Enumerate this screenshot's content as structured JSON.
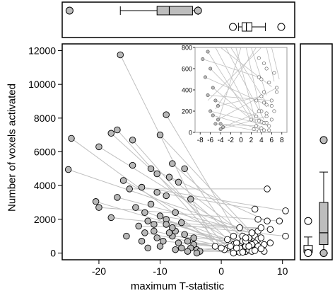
{
  "chart_data": [
    {
      "type": "scatter",
      "name": "main",
      "xlabel": "maximum T-statistic",
      "ylabel": "Number of voxels activated",
      "xlim": [
        -26,
        12
      ],
      "ylim": [
        -400,
        12400
      ],
      "x_ticks": [
        -20,
        -10,
        0,
        10
      ],
      "y_ticks": [
        0,
        2000,
        4000,
        6000,
        8000,
        10000,
        12000
      ],
      "colors": {
        "negative": "#b8b8b8",
        "positive": "#ffffff",
        "line": "#bfbfbf",
        "box": "#bdbdbd"
      },
      "pairs": [
        {
          "neg": [
            -16.5,
            11750
          ],
          "pos": [
            -1.0,
            400
          ]
        },
        {
          "neg": [
            -9,
            8200
          ],
          "pos": [
            3.5,
            600
          ]
        },
        {
          "neg": [
            -14.5,
            6700
          ],
          "pos": [
            1.0,
            300
          ]
        },
        {
          "neg": [
            -17,
            7300
          ],
          "pos": [
            0.5,
            200
          ]
        },
        {
          "neg": [
            -18,
            7100
          ],
          "pos": [
            2.0,
            500
          ]
        },
        {
          "neg": [
            -24.5,
            6800
          ],
          "pos": [
            0.0,
            300
          ]
        },
        {
          "neg": [
            -20,
            6300
          ],
          "pos": [
            4.5,
            800
          ]
        },
        {
          "neg": [
            -10,
            7000
          ],
          "pos": [
            5.5,
            1000
          ]
        },
        {
          "neg": [
            -11.5,
            5000
          ],
          "pos": [
            7.5,
            1900
          ]
        },
        {
          "neg": [
            -25,
            4950
          ],
          "pos": [
            3.0,
            1500
          ]
        },
        {
          "neg": [
            -8,
            5300
          ],
          "pos": [
            6.0,
            800
          ]
        },
        {
          "neg": [
            -6,
            5000
          ],
          "pos": [
            3.0,
            400
          ]
        },
        {
          "neg": [
            -8.5,
            4500
          ],
          "pos": [
            4.5,
            900
          ]
        },
        {
          "neg": [
            -16,
            4300
          ],
          "pos": [
            2.5,
            600
          ]
        },
        {
          "neg": [
            -15,
            3800
          ],
          "pos": [
            7.5,
            3800
          ]
        },
        {
          "neg": [
            -13,
            3900
          ],
          "pos": [
            10.5,
            2500
          ]
        },
        {
          "neg": [
            -10.5,
            3600
          ],
          "pos": [
            5.5,
            2600
          ]
        },
        {
          "neg": [
            -17,
            3300
          ],
          "pos": [
            5.0,
            1200
          ]
        },
        {
          "neg": [
            -20.5,
            3050
          ],
          "pos": [
            5.0,
            300
          ]
        },
        {
          "neg": [
            -5,
            3200
          ],
          "pos": [
            2.0,
            1000
          ]
        },
        {
          "neg": [
            -20,
            2700
          ],
          "pos": [
            9.5,
            1900
          ]
        },
        {
          "neg": [
            -14,
            2700
          ],
          "pos": [
            3.0,
            200
          ]
        },
        {
          "neg": [
            -18,
            2100
          ],
          "pos": [
            10.5,
            1000
          ]
        },
        {
          "neg": [
            -10,
            2200
          ],
          "pos": [
            6.0,
            1300
          ]
        },
        {
          "neg": [
            -12,
            1900
          ],
          "pos": [
            8.0,
            1400
          ]
        },
        {
          "neg": [
            -9,
            2000
          ],
          "pos": [
            4.0,
            100
          ]
        },
        {
          "neg": [
            -13.5,
            1600
          ],
          "pos": [
            6.5,
            1500
          ]
        },
        {
          "neg": [
            -7.5,
            1300
          ],
          "pos": [
            3.5,
            700
          ]
        },
        {
          "neg": [
            -6.5,
            1800
          ],
          "pos": [
            1.0,
            800
          ]
        },
        {
          "neg": [
            -11,
            1300
          ],
          "pos": [
            4.0,
            100
          ]
        },
        {
          "neg": [
            -8,
            1000
          ],
          "pos": [
            5.5,
            600
          ]
        },
        {
          "neg": [
            -6,
            1100
          ],
          "pos": [
            6.0,
            400
          ]
        },
        {
          "neg": [
            -12.5,
            1200
          ],
          "pos": [
            2.0,
            200
          ]
        },
        {
          "neg": [
            -9.5,
            700
          ],
          "pos": [
            3.5,
            300
          ]
        },
        {
          "neg": [
            -5.5,
            700
          ],
          "pos": [
            2.5,
            100
          ]
        },
        {
          "neg": [
            -7,
            600
          ],
          "pos": [
            7.0,
            500
          ]
        },
        {
          "neg": [
            -4.5,
            500
          ],
          "pos": [
            4.5,
            200
          ]
        },
        {
          "neg": [
            -5,
            300
          ],
          "pos": [
            3.0,
            50
          ]
        },
        {
          "neg": [
            -4,
            200
          ],
          "pos": [
            4.0,
            400
          ]
        },
        {
          "neg": [
            -3.5,
            100
          ],
          "pos": [
            5.0,
            100
          ]
        },
        {
          "neg": [
            -6.5,
            300
          ],
          "pos": [
            2.0,
            0
          ]
        }
      ],
      "extra_negative_points": [
        [
          -7.5,
          2400
        ],
        [
          -11.5,
          2900
        ],
        [
          -12.5,
          2400
        ],
        [
          -9,
          1700
        ],
        [
          -11,
          1700
        ],
        [
          -15.5,
          1000
        ],
        [
          -10.5,
          900
        ],
        [
          -8,
          1500
        ],
        [
          -4.5,
          900
        ],
        [
          -13,
          700
        ],
        [
          -12,
          300
        ],
        [
          -10,
          400
        ],
        [
          -7.5,
          200
        ],
        [
          -5.5,
          100
        ],
        [
          -4,
          0
        ],
        [
          -9,
          3400
        ],
        [
          -7,
          4200
        ],
        [
          -14.5,
          5200
        ],
        [
          -10.5,
          4700
        ],
        [
          -8.5,
          1200
        ]
      ],
      "extra_positive_points": [
        [
          3.5,
          1000
        ],
        [
          4.0,
          700
        ],
        [
          6.0,
          2000
        ],
        [
          5.0,
          500
        ],
        [
          6.5,
          900
        ],
        [
          3.0,
          300
        ],
        [
          7.0,
          100
        ],
        [
          8.0,
          600
        ],
        [
          4.5,
          400
        ],
        [
          5.5,
          150
        ],
        [
          2.5,
          300
        ],
        [
          6.5,
          250
        ],
        [
          3.5,
          50
        ],
        [
          4.0,
          900
        ],
        [
          1.5,
          400
        ]
      ]
    },
    {
      "type": "scatter",
      "name": "inset",
      "xlim": [
        -9,
        9
      ],
      "ylim": [
        0,
        800
      ],
      "x_ticks": [
        -8,
        -6,
        -4,
        -2,
        0,
        2,
        4,
        6,
        8
      ],
      "y_ticks": [
        0,
        200,
        400,
        600,
        800
      ],
      "pairs": [
        {
          "neg": [
            -7.5,
            690
          ],
          "pos": [
            3.5,
            520
          ]
        },
        {
          "neg": [
            -6.5,
            760
          ],
          "pos": [
            2.0,
            120
          ]
        },
        {
          "neg": [
            -6.0,
            600
          ],
          "pos": [
            4.5,
            90
          ]
        },
        {
          "neg": [
            -7.0,
            520
          ],
          "pos": [
            5.0,
            260
          ]
        },
        {
          "neg": [
            -5.5,
            420
          ],
          "pos": [
            4.0,
            40
          ]
        },
        {
          "neg": [
            -6.5,
            350
          ],
          "pos": [
            6.0,
            300
          ]
        },
        {
          "neg": [
            -5.0,
            300
          ],
          "pos": [
            3.0,
            150
          ]
        },
        {
          "neg": [
            -6.0,
            200
          ],
          "pos": [
            5.5,
            60
          ]
        },
        {
          "neg": [
            -5.5,
            160
          ],
          "pos": [
            4.5,
            20
          ]
        },
        {
          "neg": [
            -4.5,
            250
          ],
          "pos": [
            4.0,
            340
          ]
        },
        {
          "neg": [
            -4.5,
            120
          ],
          "pos": [
            7.0,
            420
          ]
        },
        {
          "neg": [
            -4.0,
            80
          ],
          "pos": [
            3.5,
            10
          ]
        },
        {
          "neg": [
            -4.0,
            30
          ],
          "pos": [
            5.0,
            150
          ]
        },
        {
          "neg": [
            -3.5,
            50
          ],
          "pos": [
            4.0,
            200
          ]
        },
        {
          "neg": [
            -5.0,
            80
          ],
          "pos": [
            3.0,
            60
          ]
        }
      ],
      "extra_lines": [
        {
          "from": [
            -5.0,
            800
          ],
          "to": [
            3.5,
            30
          ]
        },
        {
          "from": [
            -3.0,
            800
          ],
          "to": [
            4.5,
            120
          ]
        },
        {
          "from": [
            -1.0,
            800
          ],
          "to": [
            3.0,
            80
          ]
        },
        {
          "from": [
            1.0,
            800
          ],
          "to": [
            4.0,
            160
          ]
        },
        {
          "from": [
            2.0,
            800
          ],
          "to": [
            5.0,
            350
          ]
        },
        {
          "from": [
            0.0,
            800
          ],
          "to": [
            -4.5,
            100
          ]
        },
        {
          "from": [
            3.0,
            800
          ],
          "to": [
            -5.0,
            220
          ]
        },
        {
          "from": [
            -2.0,
            800
          ],
          "to": [
            5.5,
            240
          ]
        },
        {
          "from": [
            5.0,
            800
          ],
          "to": [
            6.5,
            480
          ]
        },
        {
          "from": [
            4.0,
            800
          ],
          "to": [
            -6.5,
            300
          ]
        },
        {
          "from": [
            -4.0,
            800
          ],
          "to": [
            6.0,
            430
          ]
        },
        {
          "from": [
            6.0,
            800
          ],
          "to": [
            7.5,
            500
          ]
        }
      ],
      "extra_positive_points": [
        [
          3.5,
          700
        ],
        [
          4.5,
          650
        ],
        [
          5.0,
          600
        ],
        [
          6.5,
          560
        ],
        [
          4.0,
          500
        ],
        [
          5.5,
          470
        ],
        [
          7.0,
          380
        ],
        [
          3.0,
          300
        ],
        [
          4.5,
          280
        ],
        [
          6.0,
          250
        ],
        [
          3.5,
          200
        ],
        [
          5.0,
          180
        ],
        [
          4.0,
          100
        ],
        [
          2.5,
          30
        ],
        [
          6.0,
          120
        ],
        [
          5.5,
          20
        ],
        [
          3.5,
          110
        ],
        [
          4.5,
          380
        ],
        [
          5.0,
          90
        ],
        [
          6.5,
          200
        ]
      ]
    },
    {
      "type": "box",
      "name": "top-marginal-negative",
      "orientation": "horizontal",
      "min": -16.5,
      "q1": -10.5,
      "median": -8.5,
      "q3": -4.7,
      "max": -3.8,
      "outliers": [
        -24.8,
        -3.8
      ]
    },
    {
      "type": "box",
      "name": "top-marginal-positive",
      "orientation": "horizontal",
      "min": 2.8,
      "q1": 3.4,
      "median": 4.1,
      "q3": 5.0,
      "max": 7.2,
      "outliers": [
        1.9,
        9.8
      ]
    },
    {
      "type": "box",
      "name": "right-marginal-negative",
      "orientation": "vertical",
      "min": 0,
      "q1": 500,
      "median": 1200,
      "q3": 3000,
      "max": 4800,
      "outliers": [
        6700,
        0
      ]
    },
    {
      "type": "box",
      "name": "right-marginal-positive",
      "orientation": "vertical",
      "min": 0,
      "q1": 50,
      "median": 180,
      "q3": 450,
      "max": 950,
      "outliers": [
        1900,
        0
      ]
    }
  ]
}
